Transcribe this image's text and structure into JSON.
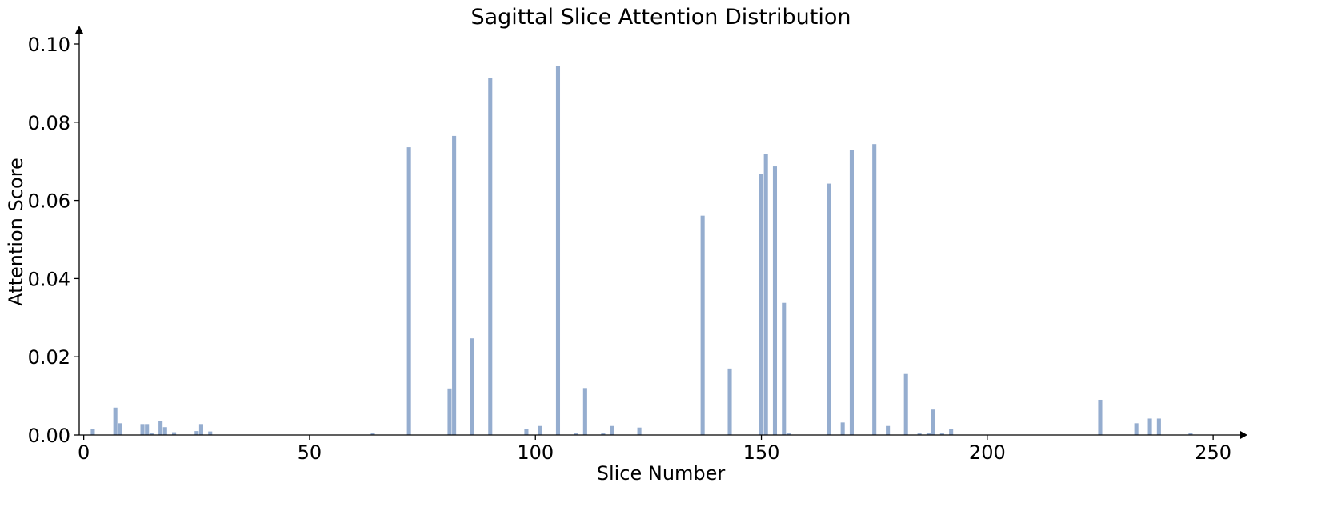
{
  "chart_data": {
    "type": "bar",
    "title": "Sagittal Slice Attention Distribution",
    "xlabel": "Slice Number",
    "ylabel": "Attention Score",
    "xlim": [
      -1,
      256
    ],
    "ylim": [
      0,
      0.1
    ],
    "xticks": [
      0,
      50,
      100,
      150,
      200,
      250
    ],
    "xtick_labels": [
      "0",
      "50",
      "100",
      "150",
      "200",
      "250"
    ],
    "yticks": [
      0,
      0.02,
      0.04,
      0.06,
      0.08,
      0.1
    ],
    "ytick_labels": [
      "0.00",
      "0.02",
      "0.04",
      "0.06",
      "0.08",
      "0.10"
    ],
    "grid": false,
    "legend": "none",
    "bar_color": "#95adcf",
    "x": [
      2,
      7,
      8,
      13,
      14,
      15,
      17,
      18,
      20,
      25,
      26,
      28,
      64,
      72,
      81,
      82,
      86,
      90,
      98,
      101,
      105,
      109,
      111,
      115,
      117,
      123,
      137,
      143,
      150,
      151,
      153,
      155,
      156,
      165,
      168,
      170,
      175,
      178,
      182,
      185,
      187,
      188,
      190,
      192,
      225,
      233,
      236,
      238,
      245
    ],
    "values": [
      0.0015,
      0.007,
      0.003,
      0.0028,
      0.0028,
      0.0006,
      0.0035,
      0.002,
      0.0007,
      0.001,
      0.0028,
      0.0009,
      0.0006,
      0.0736,
      0.0119,
      0.0765,
      0.0247,
      0.0914,
      0.0015,
      0.0023,
      0.0944,
      0.0004,
      0.012,
      0.0004,
      0.0023,
      0.0019,
      0.0561,
      0.017,
      0.0668,
      0.0719,
      0.0687,
      0.0338,
      0.0004,
      0.0643,
      0.0032,
      0.0729,
      0.0744,
      0.0023,
      0.0156,
      0.0004,
      0.0006,
      0.0065,
      0.0004,
      0.0015,
      0.009,
      0.003,
      0.0042,
      0.0042,
      0.0006
    ]
  }
}
